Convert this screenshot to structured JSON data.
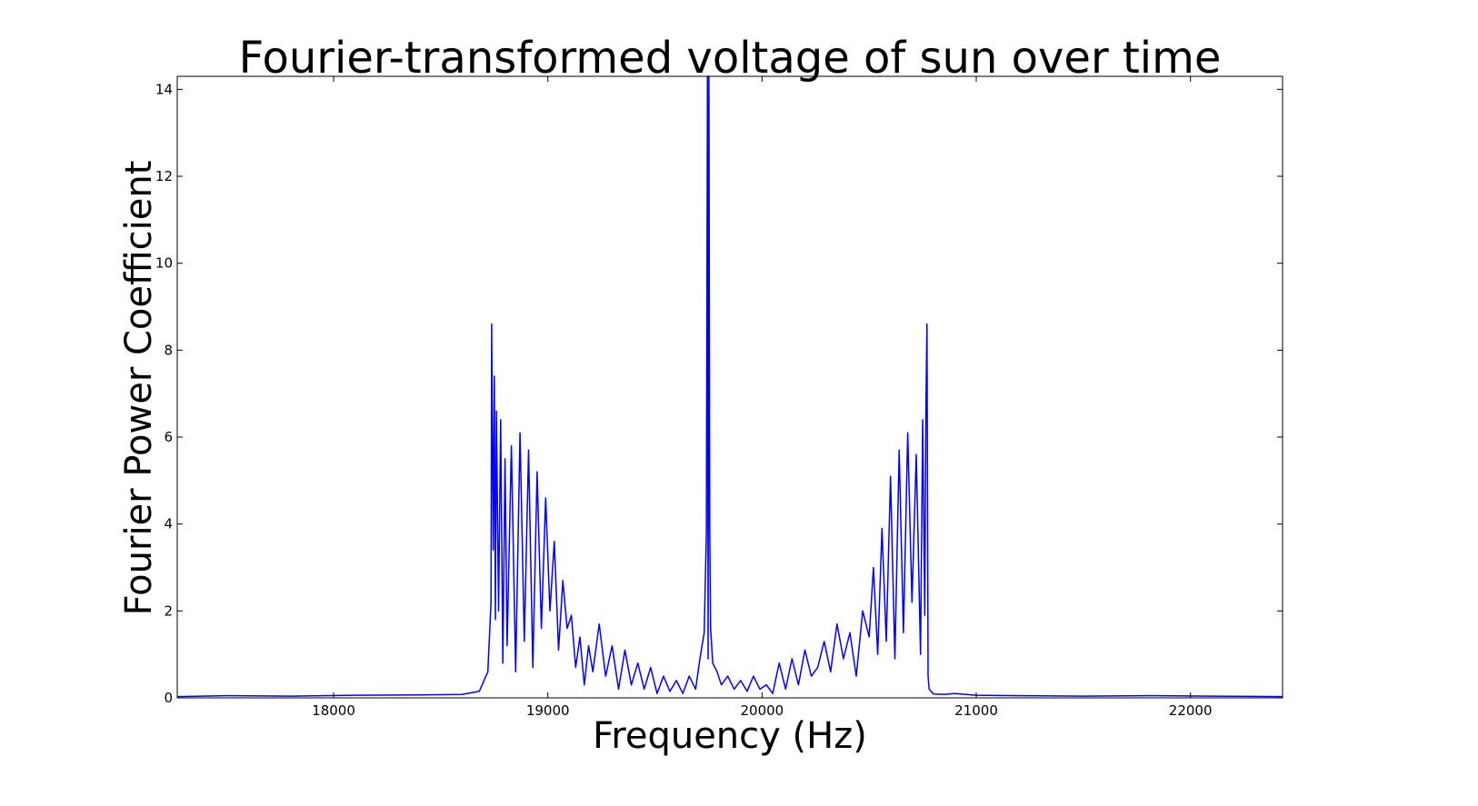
{
  "chart_data": {
    "type": "line",
    "title": "Fourier-transformed voltage of sun over time",
    "xlabel": "Frequency (Hz)",
    "ylabel": "Fourier Power Coefficient",
    "xlim": [
      17270,
      22430
    ],
    "ylim": [
      0,
      14.3
    ],
    "xticks": [
      18000,
      19000,
      20000,
      21000,
      22000
    ],
    "yticks": [
      0,
      2,
      4,
      6,
      8,
      10,
      12,
      14
    ],
    "grid": false,
    "legend": "none",
    "series": [
      {
        "color": "#0000ff",
        "x": [
          17270,
          17500,
          17800,
          18100,
          18400,
          18600,
          18680,
          18720,
          18735,
          18738,
          18745,
          18750,
          18755,
          18760,
          18770,
          18780,
          18790,
          18800,
          18810,
          18830,
          18850,
          18870,
          18890,
          18910,
          18930,
          18950,
          18970,
          18990,
          19010,
          19030,
          19050,
          19070,
          19090,
          19110,
          19130,
          19150,
          19170,
          19190,
          19210,
          19240,
          19270,
          19300,
          19330,
          19360,
          19390,
          19420,
          19450,
          19480,
          19510,
          19540,
          19570,
          19600,
          19630,
          19660,
          19690,
          19710,
          19730,
          19740,
          19745,
          19748,
          19752,
          19756,
          19760,
          19770,
          19790,
          19810,
          19840,
          19870,
          19900,
          19930,
          19960,
          19990,
          20020,
          20050,
          20080,
          20110,
          20140,
          20170,
          20200,
          20230,
          20260,
          20290,
          20320,
          20350,
          20380,
          20410,
          20440,
          20470,
          20500,
          20520,
          20540,
          20560,
          20580,
          20600,
          20620,
          20640,
          20660,
          20680,
          20700,
          20720,
          20740,
          20750,
          20760,
          20765,
          20770,
          20775,
          20780,
          20800,
          20850,
          20900,
          21000,
          21200,
          21500,
          21800,
          22100,
          22430
        ],
        "y": [
          0.03,
          0.05,
          0.04,
          0.06,
          0.07,
          0.08,
          0.15,
          0.6,
          2.2,
          8.6,
          3.4,
          7.4,
          1.8,
          6.6,
          2.0,
          6.4,
          0.8,
          5.5,
          1.2,
          5.8,
          0.6,
          6.1,
          1.3,
          5.7,
          0.7,
          5.2,
          1.6,
          4.6,
          2.0,
          3.6,
          1.1,
          2.7,
          1.6,
          1.9,
          0.7,
          1.4,
          0.3,
          1.2,
          0.6,
          1.7,
          0.5,
          1.2,
          0.2,
          1.1,
          0.3,
          0.8,
          0.2,
          0.7,
          0.1,
          0.5,
          0.15,
          0.4,
          0.1,
          0.5,
          0.2,
          0.9,
          1.5,
          3.8,
          14.3,
          0.9,
          14.3,
          3.9,
          1.6,
          0.8,
          0.6,
          0.3,
          0.5,
          0.2,
          0.4,
          0.15,
          0.5,
          0.2,
          0.3,
          0.1,
          0.8,
          0.2,
          0.9,
          0.3,
          1.1,
          0.5,
          0.7,
          1.3,
          0.6,
          1.7,
          0.9,
          1.5,
          0.5,
          2.0,
          1.4,
          3.0,
          1.0,
          3.9,
          1.3,
          5.1,
          0.9,
          5.7,
          1.5,
          6.1,
          2.2,
          5.6,
          1.0,
          6.4,
          1.9,
          6.6,
          8.6,
          0.5,
          0.2,
          0.09,
          0.08,
          0.1,
          0.06,
          0.05,
          0.04,
          0.05,
          0.04,
          0.03
        ]
      }
    ]
  }
}
